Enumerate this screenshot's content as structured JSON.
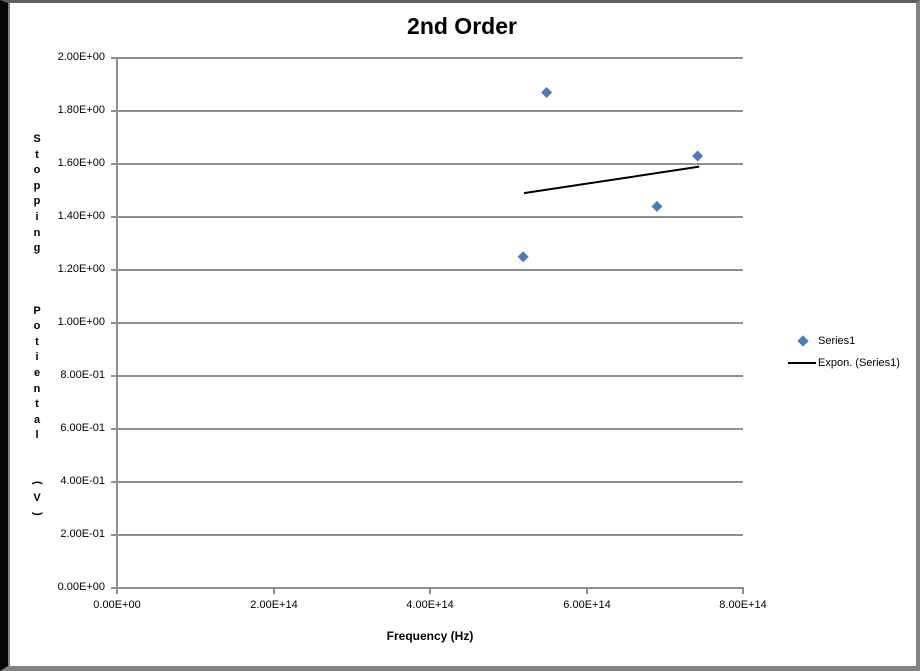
{
  "chart_data": {
    "type": "scatter",
    "title": "2nd Order",
    "xlabel": "Frequency (Hz)",
    "ylabel": "Stopping Potiental (V)",
    "ylabel_stack": [
      "S",
      "t",
      "o",
      "p",
      "p",
      "i",
      "n",
      "g",
      "",
      "",
      "",
      "P",
      "o",
      "t",
      "i",
      "e",
      "n",
      "t",
      "a",
      "l",
      "",
      "",
      "(",
      "V",
      ")"
    ],
    "xlim": [
      0,
      800000000000000.0
    ],
    "ylim": [
      0,
      2
    ],
    "grid": "horizontal",
    "legend_position": "right",
    "colors": {
      "series": "#4A7CBA",
      "trendline": "#000000",
      "gridline": "#8f8f8f",
      "text": "#000000"
    },
    "x_ticks": [
      {
        "value": 0,
        "label": "0.00E+00"
      },
      {
        "value": 200000000000000.0,
        "label": "2.00E+14"
      },
      {
        "value": 400000000000000.0,
        "label": "4.00E+14"
      },
      {
        "value": 600000000000000.0,
        "label": "6.00E+14"
      },
      {
        "value": 800000000000000.0,
        "label": "8.00E+14"
      }
    ],
    "y_ticks": [
      {
        "value": 0.0,
        "label": "0.00E+00"
      },
      {
        "value": 0.2,
        "label": "2.00E-01"
      },
      {
        "value": 0.4,
        "label": "4.00E-01"
      },
      {
        "value": 0.6,
        "label": "6.00E-01"
      },
      {
        "value": 0.8,
        "label": "8.00E-01"
      },
      {
        "value": 1.0,
        "label": "1.00E+00"
      },
      {
        "value": 1.2,
        "label": "1.20E+00"
      },
      {
        "value": 1.4,
        "label": "1.40E+00"
      },
      {
        "value": 1.6,
        "label": "1.60E+00"
      },
      {
        "value": 1.8,
        "label": "1.80E+00"
      },
      {
        "value": 2.0,
        "label": "2.00E+00"
      }
    ],
    "series": [
      {
        "name": "Series1",
        "marker": "diamond",
        "color": "#4A7CBA",
        "points": [
          {
            "x": 519000000000000.0,
            "y": 1.25
          },
          {
            "x": 549000000000000.0,
            "y": 1.87
          },
          {
            "x": 690000000000000.0,
            "y": 1.44
          },
          {
            "x": 742000000000000.0,
            "y": 1.63
          }
        ]
      }
    ],
    "trendline": {
      "name": "Expon. (Series1)",
      "color": "#000000",
      "x1": 520000000000000.0,
      "y1": 1.49,
      "x2": 744000000000000.0,
      "y2": 1.59
    },
    "legend": [
      {
        "marker": "diamond",
        "label": "Series1"
      },
      {
        "marker": "line",
        "label": "Expon. (Series1)"
      }
    ]
  }
}
